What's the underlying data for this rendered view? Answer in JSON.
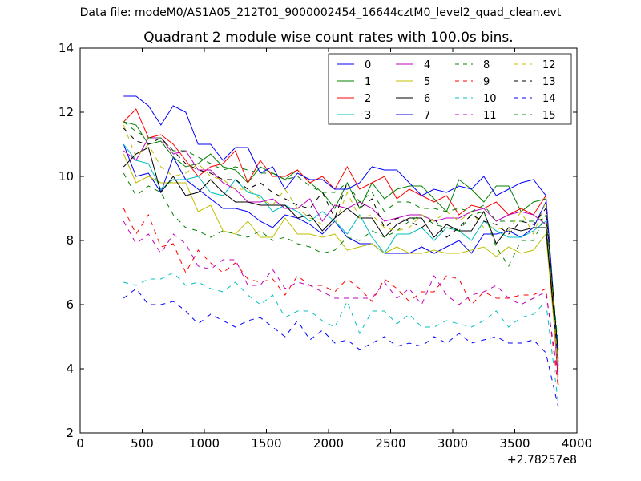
{
  "figure": {
    "suptitle": "Data file: modeM0/AS1A05_212T01_9000002454_16644cztM0_level2_quad_clean.evt",
    "title": "Quadrant 2 module wise count rates with 100.0s bins.",
    "offset_label": "+2.78257e8"
  },
  "chart_data": {
    "type": "line",
    "title": "Quadrant 2 module wise count rates with 100.0s bins.",
    "xlabel": "",
    "ylabel": "",
    "x_offset": "+2.78257e8",
    "xlim": [
      0,
      4000
    ],
    "ylim": [
      2,
      14
    ],
    "xticks": [
      0,
      500,
      1000,
      1500,
      2000,
      2500,
      3000,
      3500,
      4000
    ],
    "yticks": [
      2,
      4,
      6,
      8,
      10,
      12,
      14
    ],
    "grid": false,
    "legend": {
      "placement": "top-right",
      "columns": 4
    },
    "x": [
      350,
      450,
      550,
      650,
      750,
      850,
      950,
      1050,
      1150,
      1250,
      1350,
      1450,
      1550,
      1650,
      1750,
      1850,
      1950,
      2050,
      2150,
      2250,
      2350,
      2450,
      2550,
      2650,
      2750,
      2850,
      2950,
      3050,
      3150,
      3250,
      3350,
      3450,
      3550,
      3650,
      3750,
      3850
    ],
    "series": [
      {
        "name": "0",
        "color": "#0000ff",
        "dash": "solid",
        "values": [
          11.0,
          10.0,
          10.1,
          9.5,
          10.6,
          9.9,
          9.6,
          9.3,
          9.0,
          9.0,
          8.9,
          8.6,
          8.4,
          8.8,
          8.7,
          8.5,
          8.2,
          8.6,
          8.1,
          7.9,
          7.9,
          7.6,
          7.6,
          7.6,
          7.8,
          7.6,
          7.8,
          8.0,
          7.6,
          8.2,
          8.2,
          8.3,
          8.1,
          8.4,
          9.2,
          4.1
        ]
      },
      {
        "name": "1",
        "color": "#008000",
        "dash": "solid",
        "values": [
          11.7,
          11.6,
          11.0,
          11.1,
          10.6,
          10.3,
          10.4,
          10.7,
          10.3,
          10.2,
          9.8,
          10.3,
          10.1,
          9.9,
          10.2,
          9.8,
          9.5,
          9.0,
          9.8,
          9.0,
          9.8,
          9.3,
          9.6,
          9.7,
          9.7,
          9.3,
          8.9,
          9.9,
          9.6,
          9.2,
          9.7,
          9.7,
          8.9,
          9.2,
          9.3,
          4.2
        ]
      },
      {
        "name": "2",
        "color": "#ff0000",
        "dash": "solid",
        "values": [
          11.7,
          12.1,
          11.2,
          11.3,
          11.0,
          10.5,
          10.0,
          10.3,
          10.4,
          10.8,
          9.8,
          10.5,
          10.0,
          10.0,
          10.2,
          9.8,
          10.0,
          9.6,
          10.3,
          9.6,
          9.8,
          10.0,
          9.3,
          9.6,
          9.4,
          9.2,
          9.4,
          8.8,
          9.1,
          9.0,
          9.2,
          8.8,
          9.0,
          8.8,
          9.4,
          3.5
        ]
      },
      {
        "name": "3",
        "color": "#00bfbf",
        "dash": "solid",
        "values": [
          11.0,
          10.5,
          10.4,
          9.6,
          9.9,
          9.9,
          10.0,
          9.5,
          9.4,
          9.9,
          9.5,
          9.4,
          8.9,
          9.1,
          8.9,
          8.6,
          8.9,
          8.6,
          8.2,
          8.8,
          8.1,
          7.6,
          8.2,
          8.2,
          8.4,
          8.0,
          8.4,
          8.3,
          8.0,
          8.6,
          8.3,
          8.1,
          8.1,
          8.3,
          8.6,
          3.9
        ]
      },
      {
        "name": "4",
        "color": "#bf00bf",
        "dash": "solid",
        "values": [
          10.8,
          10.5,
          11.2,
          11.2,
          10.7,
          10.8,
          10.2,
          10.2,
          9.8,
          9.6,
          9.2,
          9.2,
          9.3,
          9.0,
          9.0,
          9.3,
          8.6,
          9.1,
          9.0,
          9.2,
          9.0,
          8.6,
          8.7,
          8.8,
          8.8,
          8.6,
          8.7,
          8.7,
          8.9,
          9.0,
          8.6,
          8.8,
          8.9,
          8.8,
          8.5,
          3.8
        ]
      },
      {
        "name": "5",
        "color": "#bfbf00",
        "dash": "solid",
        "values": [
          10.7,
          9.8,
          10.0,
          9.8,
          9.8,
          9.8,
          8.9,
          9.1,
          8.3,
          8.2,
          8.6,
          8.1,
          8.1,
          8.7,
          8.2,
          8.2,
          8.1,
          8.2,
          7.7,
          7.8,
          7.9,
          7.6,
          7.8,
          7.6,
          7.6,
          7.7,
          7.6,
          7.6,
          7.7,
          7.8,
          7.5,
          7.8,
          7.6,
          7.7,
          8.2,
          4.0
        ]
      },
      {
        "name": "6",
        "color": "#000000",
        "dash": "solid",
        "values": [
          10.3,
          10.7,
          10.9,
          9.5,
          10.0,
          9.4,
          9.5,
          9.9,
          9.5,
          9.2,
          9.2,
          9.1,
          9.1,
          9.1,
          8.7,
          8.8,
          8.3,
          8.7,
          9.0,
          8.7,
          8.7,
          8.1,
          8.5,
          8.7,
          8.7,
          8.1,
          8.5,
          8.3,
          8.3,
          8.9,
          7.9,
          8.4,
          8.3,
          8.4,
          8.4,
          4.2
        ]
      },
      {
        "name": "7",
        "color": "#0000ff",
        "dash": "solid",
        "values": [
          12.5,
          12.5,
          12.2,
          11.6,
          12.2,
          12.0,
          11.0,
          11.0,
          10.5,
          10.9,
          10.9,
          10.1,
          10.3,
          9.6,
          10.1,
          9.9,
          9.9,
          9.6,
          9.6,
          9.8,
          10.3,
          10.2,
          10.2,
          9.8,
          9.4,
          9.6,
          9.5,
          9.7,
          9.6,
          10.0,
          9.4,
          9.6,
          9.8,
          9.9,
          9.4,
          4.3
        ]
      },
      {
        "name": "8",
        "color": "#008000",
        "dash": "dashed",
        "values": [
          10.1,
          9.4,
          9.7,
          9.5,
          8.8,
          8.4,
          8.3,
          8.1,
          8.3,
          8.2,
          8.1,
          8.3,
          8.0,
          8.1,
          7.9,
          7.8,
          7.6,
          7.7,
          8.1,
          8.0,
          8.3,
          8.1,
          8.3,
          8.6,
          8.8,
          8.5,
          8.4,
          8.3,
          8.8,
          8.9,
          7.8,
          7.2,
          8.0,
          8.0,
          8.8,
          4.6
        ]
      },
      {
        "name": "9",
        "color": "#ff0000",
        "dash": "dashed",
        "values": [
          9.0,
          8.2,
          8.8,
          7.8,
          7.9,
          7.0,
          7.7,
          7.3,
          7.0,
          7.3,
          6.8,
          6.7,
          6.8,
          6.3,
          6.9,
          6.6,
          6.6,
          6.4,
          6.8,
          6.5,
          6.1,
          6.8,
          6.5,
          6.1,
          6.4,
          6.4,
          6.9,
          6.8,
          6.0,
          6.4,
          6.2,
          6.2,
          6.3,
          6.3,
          6.5,
          3.4
        ]
      },
      {
        "name": "10",
        "color": "#00bfbf",
        "dash": "dashed",
        "values": [
          6.7,
          6.6,
          6.8,
          6.8,
          7.0,
          6.6,
          6.7,
          6.5,
          6.4,
          6.7,
          6.3,
          6.0,
          6.3,
          5.6,
          5.8,
          5.8,
          5.5,
          5.3,
          6.1,
          5.1,
          5.8,
          5.8,
          5.4,
          5.7,
          5.3,
          5.3,
          5.5,
          5.4,
          5.3,
          5.5,
          5.8,
          5.3,
          5.6,
          5.7,
          6.1,
          2.9
        ]
      },
      {
        "name": "11",
        "color": "#bf00bf",
        "dash": "dashed",
        "values": [
          8.6,
          7.9,
          8.2,
          7.6,
          8.2,
          7.9,
          7.2,
          7.1,
          7.4,
          7.4,
          6.6,
          6.6,
          7.1,
          6.5,
          6.7,
          6.6,
          6.4,
          6.2,
          6.2,
          6.2,
          6.2,
          6.7,
          6.2,
          6.5,
          6.0,
          6.9,
          6.3,
          6.0,
          6.3,
          6.4,
          6.6,
          6.2,
          6.0,
          6.2,
          6.4,
          3.7
        ]
      },
      {
        "name": "12",
        "color": "#bfbf00",
        "dash": "dashed",
        "values": [
          11.6,
          10.6,
          11.0,
          10.3,
          10.0,
          10.1,
          10.4,
          10.0,
          9.9,
          9.6,
          9.6,
          9.3,
          9.1,
          9.6,
          9.0,
          8.7,
          8.5,
          8.5,
          9.5,
          8.7,
          8.8,
          8.4,
          8.3,
          8.4,
          8.8,
          8.6,
          8.9,
          8.6,
          8.9,
          8.4,
          8.4,
          8.3,
          8.9,
          8.2,
          9.2,
          4.0
        ]
      },
      {
        "name": "13",
        "color": "#000000",
        "dash": "dashed",
        "values": [
          11.5,
          11.1,
          11.0,
          11.2,
          10.8,
          10.4,
          10.2,
          10.1,
          9.9,
          9.9,
          9.6,
          9.8,
          9.5,
          9.3,
          9.1,
          9.0,
          9.5,
          8.7,
          9.8,
          9.0,
          9.3,
          8.4,
          8.7,
          8.6,
          8.4,
          8.7,
          8.1,
          8.4,
          8.8,
          8.6,
          8.5,
          8.2,
          8.6,
          8.5,
          9.0,
          4.4
        ]
      },
      {
        "name": "14",
        "color": "#0000ff",
        "dash": "dashed",
        "values": [
          6.2,
          6.5,
          6.0,
          6.0,
          6.1,
          5.8,
          5.4,
          5.7,
          5.5,
          5.3,
          5.5,
          5.6,
          5.3,
          5.0,
          5.5,
          4.9,
          5.2,
          4.8,
          4.9,
          4.6,
          4.8,
          5.0,
          4.7,
          4.8,
          4.7,
          5.0,
          4.8,
          5.1,
          4.8,
          4.9,
          5.0,
          4.8,
          4.8,
          4.9,
          4.5,
          2.8
        ]
      },
      {
        "name": "15",
        "color": "#008000",
        "dash": "dashed",
        "values": [
          11.7,
          11.4,
          11.2,
          11.2,
          10.8,
          10.8,
          10.6,
          10.4,
          10.2,
          10.3,
          10.2,
          10.1,
          10.1,
          9.9,
          10.0,
          9.7,
          9.5,
          9.5,
          9.8,
          9.2,
          9.5,
          8.9,
          9.2,
          9.2,
          9.0,
          9.0,
          8.9,
          9.0,
          8.9,
          9.1,
          8.6,
          8.6,
          8.6,
          8.6,
          8.7,
          4.7
        ]
      }
    ]
  }
}
